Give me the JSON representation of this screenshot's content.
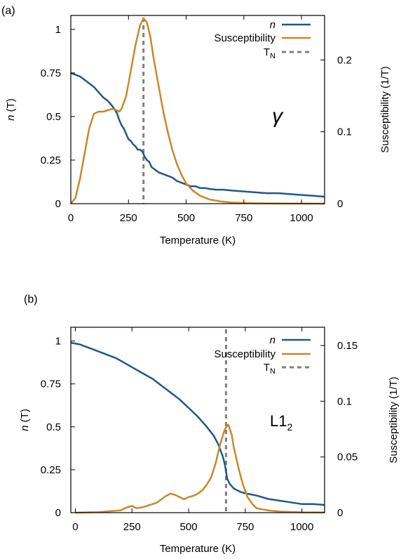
{
  "colors": {
    "n": "#235789",
    "susceptibility": "#C8892B",
    "tn": "#7f7f7f",
    "axis": "#000000"
  },
  "chart_data": [
    {
      "panel_label": "(a)",
      "type": "line",
      "annotation": "γ",
      "annotation_style": "italic",
      "xlabel": "Temperature (K)",
      "ylabel_italic": "n",
      "ylabel_rest": " (T)",
      "y2label": "Susceptibility (1/T)",
      "xlim": [
        0,
        1100
      ],
      "ylim": [
        0,
        1.08
      ],
      "y2lim": [
        0,
        0.2619
      ],
      "x_ticks": [
        0,
        250,
        500,
        750,
        1000
      ],
      "y_ticks": [
        0,
        0.25,
        0.5,
        0.75,
        1
      ],
      "y2_ticks": [
        0,
        0.1,
        0.2
      ],
      "legend_position": "top-right",
      "legend": [
        {
          "key": "n",
          "label": "n",
          "italic": true,
          "style": "solid"
        },
        {
          "key": "susceptibility",
          "label": "Susceptibility",
          "italic": false,
          "style": "solid"
        },
        {
          "key": "tn",
          "label": "T",
          "sub": "N",
          "italic": false,
          "style": "dashed"
        }
      ],
      "tn": 315,
      "series": [
        {
          "key": "n",
          "name": "n",
          "axis": "left",
          "points": [
            [
              0,
              0.75
            ],
            [
              20,
              0.74
            ],
            [
              40,
              0.73
            ],
            [
              60,
              0.71
            ],
            [
              80,
              0.69
            ],
            [
              100,
              0.67
            ],
            [
              120,
              0.64
            ],
            [
              140,
              0.61
            ],
            [
              160,
              0.59
            ],
            [
              180,
              0.56
            ],
            [
              200,
              0.52
            ],
            [
              210,
              0.48
            ],
            [
              220,
              0.45
            ],
            [
              230,
              0.43
            ],
            [
              240,
              0.4
            ],
            [
              250,
              0.37
            ],
            [
              260,
              0.36
            ],
            [
              270,
              0.34
            ],
            [
              280,
              0.33
            ],
            [
              290,
              0.31
            ],
            [
              300,
              0.31
            ],
            [
              310,
              0.3
            ],
            [
              320,
              0.27
            ],
            [
              330,
              0.25
            ],
            [
              340,
              0.24
            ],
            [
              350,
              0.21
            ],
            [
              360,
              0.2
            ],
            [
              370,
              0.19
            ],
            [
              380,
              0.18
            ],
            [
              400,
              0.17
            ],
            [
              420,
              0.16
            ],
            [
              440,
              0.15
            ],
            [
              460,
              0.13
            ],
            [
              480,
              0.12
            ],
            [
              500,
              0.11
            ],
            [
              520,
              0.1
            ],
            [
              540,
              0.1
            ],
            [
              560,
              0.09
            ],
            [
              580,
              0.09
            ],
            [
              600,
              0.085
            ],
            [
              630,
              0.08
            ],
            [
              660,
              0.08
            ],
            [
              700,
              0.075
            ],
            [
              750,
              0.07
            ],
            [
              800,
              0.065
            ],
            [
              850,
              0.06
            ],
            [
              900,
              0.06
            ],
            [
              950,
              0.055
            ],
            [
              1000,
              0.05
            ],
            [
              1050,
              0.045
            ],
            [
              1100,
              0.04
            ]
          ]
        },
        {
          "key": "susceptibility",
          "name": "Susceptibility",
          "axis": "right",
          "points": [
            [
              0,
              0.0
            ],
            [
              20,
              0.008
            ],
            [
              40,
              0.035
            ],
            [
              60,
              0.07
            ],
            [
              80,
              0.105
            ],
            [
              100,
              0.125
            ],
            [
              120,
              0.128
            ],
            [
              140,
              0.128
            ],
            [
              160,
              0.13
            ],
            [
              180,
              0.132
            ],
            [
              200,
              0.13
            ],
            [
              210,
              0.128
            ],
            [
              220,
              0.132
            ],
            [
              240,
              0.15
            ],
            [
              260,
              0.185
            ],
            [
              280,
              0.22
            ],
            [
              300,
              0.248
            ],
            [
              315,
              0.258
            ],
            [
              330,
              0.252
            ],
            [
              345,
              0.232
            ],
            [
              360,
              0.2
            ],
            [
              380,
              0.165
            ],
            [
              400,
              0.13
            ],
            [
              420,
              0.1
            ],
            [
              440,
              0.075
            ],
            [
              460,
              0.055
            ],
            [
              480,
              0.04
            ],
            [
              500,
              0.028
            ],
            [
              530,
              0.018
            ],
            [
              560,
              0.011
            ],
            [
              600,
              0.006
            ],
            [
              650,
              0.003
            ],
            [
              700,
              0.0015
            ],
            [
              800,
              0.0005
            ],
            [
              900,
              0.0002
            ],
            [
              1100,
              0.0
            ]
          ]
        }
      ]
    },
    {
      "panel_label": "(b)",
      "type": "line",
      "annotation": "L1",
      "annotation_sub": "2",
      "annotation_style": "normal",
      "xlabel": "Temperature (K)",
      "ylabel_italic": "n",
      "ylabel_rest": " (T)",
      "y2label": "Susceptibility (1/T)",
      "xlim": [
        -20,
        1100
      ],
      "ylim": [
        0,
        1.08
      ],
      "y2lim": [
        0,
        0.1664
      ],
      "x_ticks": [
        0,
        250,
        500,
        750,
        1000
      ],
      "y_ticks": [
        0,
        0.25,
        0.5,
        0.75,
        1
      ],
      "y2_ticks": [
        0,
        0.05,
        0.1,
        0.15
      ],
      "y2_tick_labels": [
        "0",
        "0.05",
        "0.1",
        "0.15"
      ],
      "legend_position": "top-right",
      "legend": [
        {
          "key": "n",
          "label": "n",
          "italic": true,
          "style": "solid"
        },
        {
          "key": "susceptibility",
          "label": "Susceptibility",
          "italic": false,
          "style": "solid"
        },
        {
          "key": "tn",
          "label": "T",
          "sub": "N",
          "italic": false,
          "style": "dashed"
        }
      ],
      "tn": 665,
      "series": [
        {
          "key": "n",
          "name": "n",
          "axis": "left",
          "points": [
            [
              -20,
              0.99
            ],
            [
              20,
              0.98
            ],
            [
              60,
              0.96
            ],
            [
              100,
              0.94
            ],
            [
              140,
              0.92
            ],
            [
              180,
              0.9
            ],
            [
              220,
              0.87
            ],
            [
              260,
              0.84
            ],
            [
              300,
              0.81
            ],
            [
              340,
              0.78
            ],
            [
              380,
              0.74
            ],
            [
              420,
              0.7
            ],
            [
              460,
              0.66
            ],
            [
              500,
              0.61
            ],
            [
              540,
              0.56
            ],
            [
              580,
              0.5
            ],
            [
              610,
              0.45
            ],
            [
              630,
              0.4
            ],
            [
              650,
              0.33
            ],
            [
              660,
              0.28
            ],
            [
              670,
              0.2
            ],
            [
              680,
              0.17
            ],
            [
              700,
              0.14
            ],
            [
              730,
              0.12
            ],
            [
              760,
              0.11
            ],
            [
              800,
              0.1
            ],
            [
              850,
              0.08
            ],
            [
              900,
              0.07
            ],
            [
              950,
              0.06
            ],
            [
              1000,
              0.05
            ],
            [
              1050,
              0.05
            ],
            [
              1100,
              0.045
            ]
          ]
        },
        {
          "key": "susceptibility",
          "name": "Susceptibility",
          "axis": "right",
          "points": [
            [
              0,
              0.0
            ],
            [
              100,
              0.0005
            ],
            [
              200,
              0.002
            ],
            [
              230,
              0.005
            ],
            [
              250,
              0.006
            ],
            [
              270,
              0.004
            ],
            [
              300,
              0.005
            ],
            [
              330,
              0.007
            ],
            [
              360,
              0.009
            ],
            [
              380,
              0.012
            ],
            [
              400,
              0.015
            ],
            [
              420,
              0.017
            ],
            [
              440,
              0.016
            ],
            [
              460,
              0.014
            ],
            [
              480,
              0.012
            ],
            [
              500,
              0.014
            ],
            [
              520,
              0.015
            ],
            [
              540,
              0.017
            ],
            [
              560,
              0.02
            ],
            [
              580,
              0.025
            ],
            [
              600,
              0.032
            ],
            [
              620,
              0.045
            ],
            [
              640,
              0.062
            ],
            [
              660,
              0.075
            ],
            [
              675,
              0.079
            ],
            [
              690,
              0.07
            ],
            [
              700,
              0.058
            ],
            [
              720,
              0.04
            ],
            [
              740,
              0.025
            ],
            [
              760,
              0.014
            ],
            [
              780,
              0.008
            ],
            [
              800,
              0.004
            ],
            [
              850,
              0.002
            ],
            [
              900,
              0.001
            ],
            [
              1000,
              0.0003
            ],
            [
              1100,
              0.0001
            ]
          ]
        }
      ]
    }
  ]
}
